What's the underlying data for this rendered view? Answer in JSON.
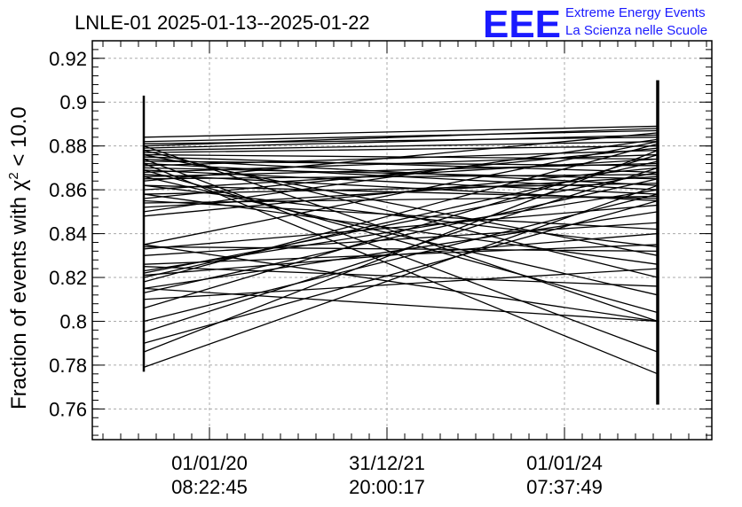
{
  "title": "LNLE-01 2025-01-13--2025-01-22",
  "brand": {
    "logo": "EEE",
    "line1": "Extreme Energy Events",
    "line2": "La Scienza nelle Scuole",
    "color": "#1a1aff"
  },
  "chart_data": {
    "type": "line",
    "ylabel_prefix": "Fraction of events with χ",
    "ylabel_sup": "2",
    "ylabel_suffix": " < 10.0",
    "ylim": [
      0.746,
      0.928
    ],
    "yticks": [
      "0.76",
      "0.78",
      "0.8",
      "0.82",
      "0.84",
      "0.86",
      "0.88",
      "0.9",
      "0.92"
    ],
    "xticks": [
      {
        "date": "01/01/20",
        "time": "08:22:45"
      },
      {
        "date": "31/12/21",
        "time": "20:00:17"
      },
      {
        "date": "01/01/24",
        "time": "07:37:49"
      }
    ],
    "grid": true,
    "line_color": "#000000",
    "segments": [
      [
        0.884,
        0.889
      ],
      [
        0.882,
        0.887
      ],
      [
        0.881,
        0.884
      ],
      [
        0.88,
        0.888
      ],
      [
        0.879,
        0.885
      ],
      [
        0.878,
        0.882
      ],
      [
        0.877,
        0.88
      ],
      [
        0.876,
        0.874
      ],
      [
        0.875,
        0.868
      ],
      [
        0.874,
        0.862
      ],
      [
        0.873,
        0.871
      ],
      [
        0.872,
        0.86
      ],
      [
        0.871,
        0.878
      ],
      [
        0.87,
        0.865
      ],
      [
        0.869,
        0.858
      ],
      [
        0.868,
        0.876
      ],
      [
        0.867,
        0.855
      ],
      [
        0.866,
        0.872
      ],
      [
        0.865,
        0.867
      ],
      [
        0.864,
        0.886
      ],
      [
        0.862,
        0.856
      ],
      [
        0.86,
        0.874
      ],
      [
        0.858,
        0.863
      ],
      [
        0.856,
        0.879
      ],
      [
        0.854,
        0.857
      ],
      [
        0.852,
        0.866
      ],
      [
        0.85,
        0.883
      ],
      [
        0.848,
        0.87
      ],
      [
        0.835,
        0.882
      ],
      [
        0.834,
        0.832
      ],
      [
        0.833,
        0.853
      ],
      [
        0.83,
        0.845
      ],
      [
        0.826,
        0.835
      ],
      [
        0.823,
        0.86
      ],
      [
        0.821,
        0.84
      ],
      [
        0.82,
        0.873
      ],
      [
        0.818,
        0.881
      ],
      [
        0.815,
        0.8
      ],
      [
        0.813,
        0.865
      ],
      [
        0.81,
        0.824
      ],
      [
        0.806,
        0.876
      ],
      [
        0.8,
        0.858
      ],
      [
        0.795,
        0.87
      ],
      [
        0.79,
        0.855
      ],
      [
        0.786,
        0.878
      ],
      [
        0.779,
        0.862
      ],
      [
        0.88,
        0.8
      ],
      [
        0.878,
        0.82
      ],
      [
        0.876,
        0.83
      ],
      [
        0.874,
        0.786
      ],
      [
        0.872,
        0.776
      ],
      [
        0.869,
        0.804
      ],
      [
        0.866,
        0.812
      ],
      [
        0.862,
        0.834
      ],
      [
        0.858,
        0.826
      ],
      [
        0.855,
        0.842
      ],
      [
        0.835,
        0.8
      ],
      [
        0.825,
        0.816
      ],
      [
        0.815,
        0.85
      ],
      [
        0.822,
        0.868
      ]
    ],
    "left_bar": [
      0.777,
      0.903
    ],
    "right_bar": [
      0.762,
      0.91
    ]
  }
}
